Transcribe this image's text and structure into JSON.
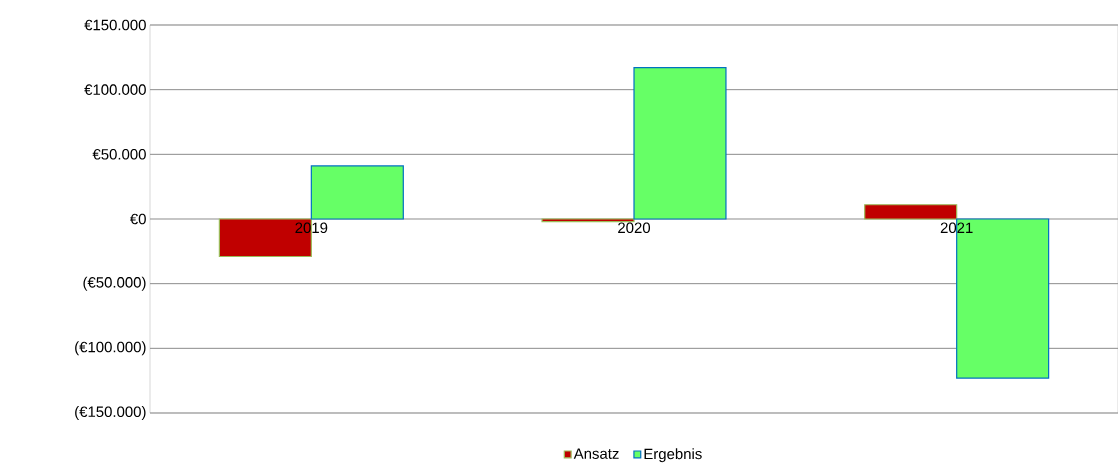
{
  "chart_data": {
    "type": "bar",
    "categories": [
      "2019",
      "2020",
      "2021"
    ],
    "series": [
      {
        "name": "Ansatz",
        "color": "#c00000",
        "values": [
          -29000,
          -2000,
          11000
        ]
      },
      {
        "name": "Ergebnis",
        "color": "#66ff66",
        "values": [
          41000,
          117000,
          -123000
        ]
      }
    ],
    "ylim": [
      -150000,
      150000
    ],
    "yticks": [
      {
        "value": -150000,
        "label": "(€150.000)"
      },
      {
        "value": -100000,
        "label": "(€100.000)"
      },
      {
        "value": -50000,
        "label": "(€50.000)"
      },
      {
        "value": 0,
        "label": "€0"
      },
      {
        "value": 50000,
        "label": "€50.000"
      },
      {
        "value": 100000,
        "label": "€100.000"
      },
      {
        "value": 150000,
        "label": "€150.000"
      }
    ],
    "grid": "y",
    "legend": "bottom"
  }
}
